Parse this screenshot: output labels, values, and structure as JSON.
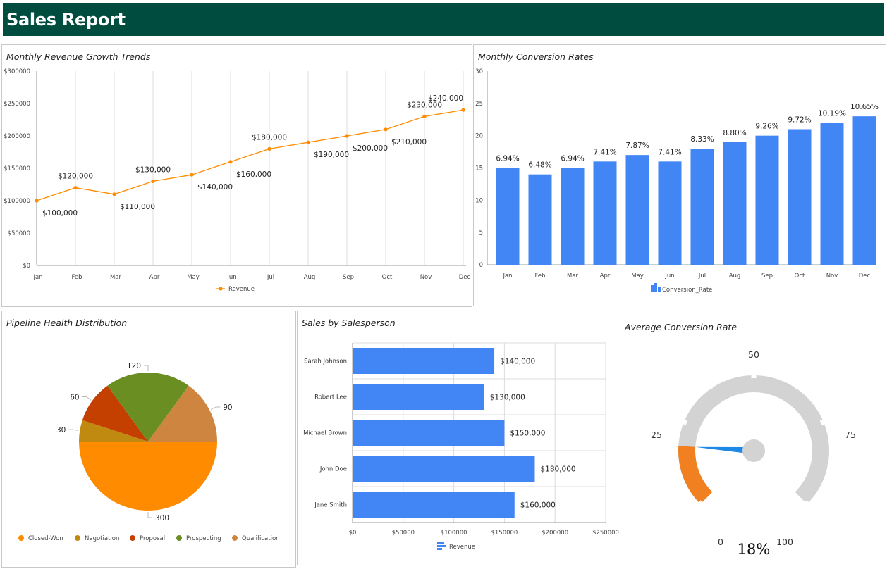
{
  "header": {
    "title": "Sales Report"
  },
  "colors": {
    "header_bg": "#004d40",
    "line": "#ff8c00",
    "bar": "#4285f4",
    "pie": {
      "Closed-Won": "#ff8c00",
      "Negotiation": "#c08a10",
      "Proposal": "#c44000",
      "Prospecting": "#6b8e23",
      "Qualification": "#cd853f"
    },
    "gauge_track": "#d3d3d3",
    "gauge_fill": "#f08020",
    "gauge_needle": "#1e88e5"
  },
  "panels": {
    "revenue": {
      "title": "Monthly Revenue Growth Trends"
    },
    "conversion": {
      "title": "Monthly Conversion Rates"
    },
    "pipeline": {
      "title": "Pipeline Health Distribution"
    },
    "salesperson": {
      "title": "Sales by Salesperson"
    },
    "gauge": {
      "title": "Average Conversion Rate"
    }
  },
  "chart_data": [
    {
      "type": "line",
      "categories": [
        "Jan",
        "Feb",
        "Mar",
        "Apr",
        "May",
        "Jun",
        "Jul",
        "Aug",
        "Sep",
        "Oct",
        "Nov",
        "Dec"
      ],
      "series": [
        {
          "name": "Revenue",
          "values": [
            100000,
            120000,
            110000,
            130000,
            140000,
            160000,
            180000,
            190000,
            200000,
            210000,
            230000,
            240000
          ]
        }
      ],
      "data_labels": [
        "$100,000",
        "$120,000",
        "$110,000",
        "$130,000",
        "$140,000",
        "$160,000",
        "$180,000",
        "$190,000",
        "$200,000",
        "$210,000",
        "$230,000",
        "$240,000"
      ],
      "y_ticks": [
        "$0",
        "$50000",
        "$100000",
        "$150000",
        "$200000",
        "$250000",
        "$300000"
      ],
      "ylim": [
        0,
        300000
      ],
      "grid": "vertical",
      "legend": "bottom"
    },
    {
      "type": "bar",
      "categories": [
        "Jan",
        "Feb",
        "Mar",
        "Apr",
        "May",
        "Jun",
        "Jul",
        "Aug",
        "Sep",
        "Oct",
        "Nov",
        "Dec"
      ],
      "series": [
        {
          "name": "Conversion_Rate",
          "values": [
            15,
            14,
            15,
            16,
            17,
            16,
            18,
            19,
            20,
            21,
            22,
            23
          ]
        }
      ],
      "data_labels": [
        "6.94%",
        "6.48%",
        "6.94%",
        "7.41%",
        "7.87%",
        "7.41%",
        "8.33%",
        "8.80%",
        "9.26%",
        "9.72%",
        "10.19%",
        "10.65%"
      ],
      "y_ticks": [
        "0",
        "5",
        "10",
        "15",
        "20",
        "25",
        "30"
      ],
      "ylim": [
        0,
        30
      ],
      "legend": "bottom"
    },
    {
      "type": "pie",
      "categories": [
        "Closed-Won",
        "Negotiation",
        "Proposal",
        "Prospecting",
        "Qualification"
      ],
      "values": [
        300,
        30,
        60,
        120,
        90
      ],
      "data_labels": [
        "300",
        "30",
        "60",
        "120",
        "90"
      ],
      "legend": "bottom"
    },
    {
      "type": "bar",
      "orientation": "horizontal",
      "categories": [
        "Sarah Johnson",
        "Robert Lee",
        "Michael Brown",
        "John Doe",
        "Jane Smith"
      ],
      "series": [
        {
          "name": "Revenue",
          "values": [
            140000,
            130000,
            150000,
            180000,
            160000
          ]
        }
      ],
      "data_labels": [
        "$140,000",
        "$130,000",
        "$150,000",
        "$180,000",
        "$160,000"
      ],
      "x_ticks": [
        "$0",
        "$50000",
        "$100000",
        "$150000",
        "$200000",
        "$250000"
      ],
      "xlim": [
        0,
        250000
      ],
      "legend": "bottom"
    },
    {
      "type": "gauge",
      "value": 18,
      "value_label": "18%",
      "range": [
        0,
        100
      ],
      "tick_labels": [
        "0",
        "25",
        "50",
        "75",
        "100"
      ]
    }
  ]
}
